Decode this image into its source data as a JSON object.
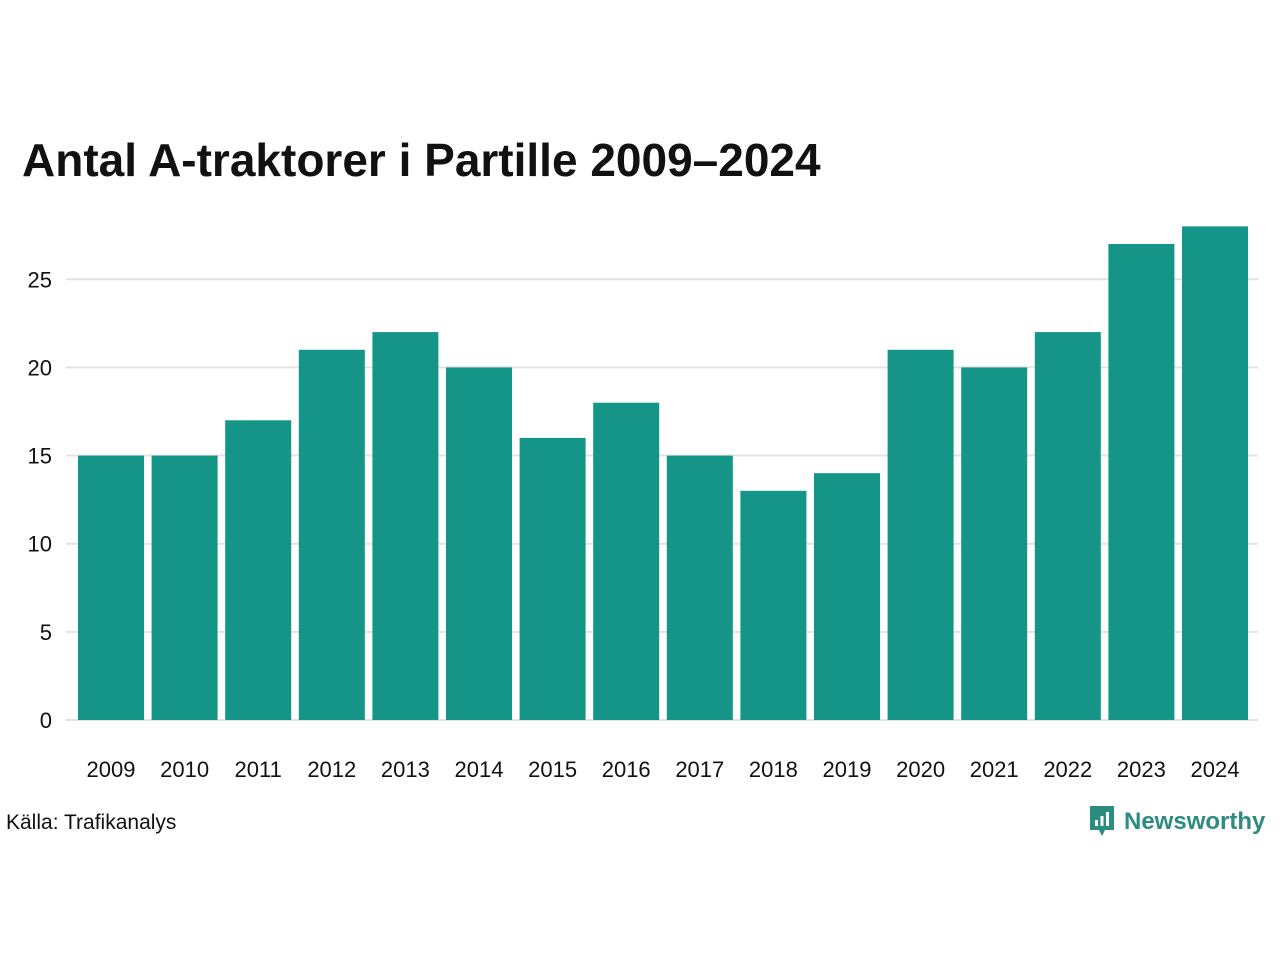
{
  "title": "Antal A-traktorer i Partille 2009–2024",
  "source": "Källa: Trafikanalys",
  "brand": {
    "name": "Newsworthy",
    "logo_icon": "newsworthy-logo-icon",
    "color": "#2b8c7f"
  },
  "colors": {
    "bar": "#159587",
    "grid": "#e3e3e3",
    "axis_text": "#111111"
  },
  "chart_data": {
    "type": "bar",
    "title": "Antal A-traktorer i Partille 2009–2024",
    "xlabel": "",
    "ylabel": "",
    "categories": [
      "2009",
      "2010",
      "2011",
      "2012",
      "2013",
      "2014",
      "2015",
      "2016",
      "2017",
      "2018",
      "2019",
      "2020",
      "2021",
      "2022",
      "2023",
      "2024"
    ],
    "values": [
      15,
      15,
      17,
      21,
      22,
      20,
      16,
      18,
      15,
      13,
      14,
      21,
      20,
      22,
      27,
      28
    ],
    "yticks": [
      0,
      5,
      10,
      15,
      20,
      25
    ],
    "ylim": [
      0,
      28
    ],
    "grid": "horizontal",
    "legend": "none"
  }
}
